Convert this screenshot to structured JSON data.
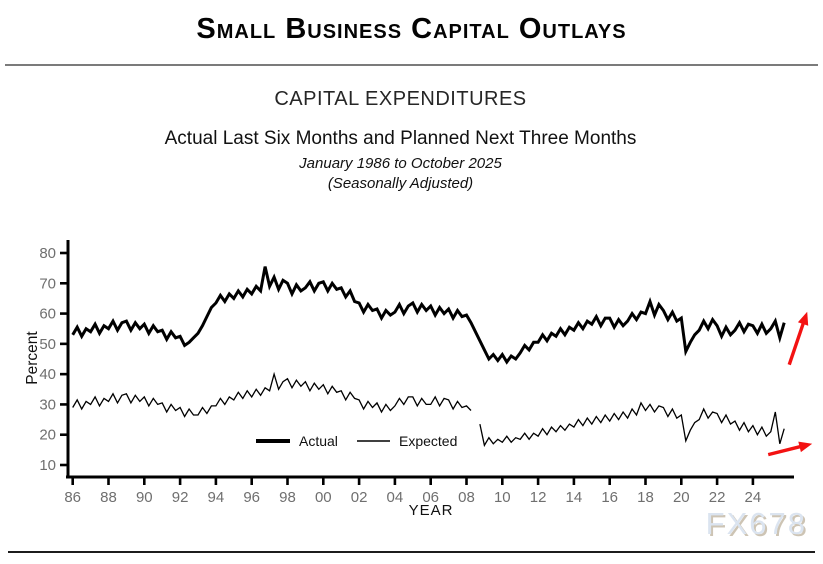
{
  "header": {
    "title": "Small Business Capital Outlays"
  },
  "chart": {
    "title": "CAPITAL EXPENDITURES",
    "subtitle": "Actual Last Six Months and Planned Next Three Months",
    "period": "January 1986 to October 2025",
    "note": "(Seasonally Adjusted)"
  },
  "watermark": {
    "text": "FX678"
  },
  "colors": {
    "axis": "#000000",
    "tick_label": "#6f6f6f",
    "axis_title": "#111111",
    "legend_text": "#111111",
    "arrow": "#f31212",
    "rule_top": "#7b7b7b",
    "rule_bottom": "#1c1c1c",
    "watermark": "#dbe4f0"
  },
  "chart_data": {
    "type": "line",
    "title": "CAPITAL EXPENDITURES",
    "subtitle": "Actual Last Six Months and Planned Next Three Months",
    "period": "January 1986 to October 2025",
    "seasonally_adjusted": true,
    "xlabel": "YEAR",
    "ylabel": "Percent",
    "grid": false,
    "legend_position": "inside-bottom-center",
    "x_start_year": 1986,
    "x_end_year": 2025.75,
    "points_per_year": 4,
    "x_tick_years": [
      1986,
      1988,
      1990,
      1992,
      1994,
      1996,
      1998,
      2000,
      2002,
      2004,
      2006,
      2008,
      2010,
      2012,
      2014,
      2016,
      2018,
      2020,
      2022,
      2024
    ],
    "x_tick_labels": [
      "86",
      "88",
      "90",
      "92",
      "94",
      "96",
      "98",
      "00",
      "02",
      "04",
      "06",
      "08",
      "10",
      "12",
      "14",
      "16",
      "18",
      "20",
      "22",
      "24"
    ],
    "y_ticks": [
      10,
      20,
      30,
      40,
      50,
      60,
      70,
      80
    ],
    "ylim": [
      6,
      83
    ],
    "series": [
      {
        "name": "Actual",
        "color": "#000000",
        "line_width": 3,
        "values": [
          53,
          55.5,
          52.5,
          55,
          54,
          56.5,
          53.5,
          56,
          55,
          57.5,
          54.5,
          57,
          57.5,
          54.5,
          57,
          55,
          56.5,
          53.5,
          56,
          54,
          54.5,
          51.5,
          54,
          52,
          52.5,
          49.5,
          50.5,
          52,
          53.5,
          56,
          59,
          62,
          63.5,
          66,
          64,
          66.5,
          65,
          67.5,
          65.5,
          68,
          66.5,
          69,
          67.5,
          75.5,
          69,
          72,
          68,
          71,
          70,
          66.5,
          69.5,
          67.5,
          68.5,
          70.5,
          67.5,
          70,
          70.5,
          67.5,
          70,
          68,
          68.5,
          65.5,
          67.5,
          64,
          63.5,
          60.5,
          63,
          61,
          61.5,
          58.5,
          61,
          59.5,
          60.5,
          63,
          60,
          62.5,
          63.5,
          60.5,
          63,
          61,
          62.5,
          59.5,
          62,
          60,
          61.5,
          58.5,
          61,
          59,
          59.5,
          57,
          54,
          51,
          48,
          45,
          46.5,
          44.5,
          46.5,
          44,
          46,
          45,
          47,
          49.5,
          48,
          50.5,
          50.5,
          53,
          51,
          53.5,
          52.5,
          55,
          53,
          55.5,
          54.5,
          57,
          55,
          57.5,
          56.5,
          59,
          56,
          58.5,
          58.5,
          55.5,
          58,
          56,
          57.5,
          60,
          58,
          60.5,
          60,
          64,
          59.5,
          63,
          61,
          58,
          60.5,
          57.5,
          58.5,
          47.5,
          50.5,
          53,
          54.5,
          57.5,
          55,
          58,
          56,
          52.5,
          55.5,
          53,
          54.5,
          57,
          54,
          56.5,
          56,
          53.5,
          56.5,
          53.5,
          55,
          57.5,
          52,
          57
        ]
      },
      {
        "name": "Expected",
        "color": "#000000",
        "line_width": 1.3,
        "values": [
          29,
          31.5,
          28.5,
          31,
          30,
          32.5,
          29.5,
          32,
          31,
          33.5,
          30.5,
          33,
          33.5,
          30.5,
          33,
          31,
          32.5,
          29.5,
          32,
          30,
          30.5,
          27.5,
          30,
          28,
          29,
          26,
          28.5,
          26.5,
          26.5,
          29,
          27,
          29.5,
          29.5,
          32,
          30,
          32.5,
          31.5,
          34,
          32,
          34.5,
          32.5,
          35,
          33,
          35.5,
          34.5,
          40,
          35,
          37.5,
          38.5,
          35.5,
          38,
          36,
          37.5,
          34.5,
          37,
          35,
          36.5,
          33.5,
          36,
          34,
          34.5,
          31.5,
          34,
          32,
          31.5,
          28.5,
          31,
          29,
          30.5,
          27.5,
          30,
          28,
          29.5,
          32,
          30,
          32.5,
          32.5,
          29.5,
          32,
          30,
          30,
          32.5,
          29.5,
          32,
          31.5,
          28.5,
          31,
          29,
          29.5,
          28,
          null,
          23.5,
          16.5,
          19,
          17,
          18.5,
          17.5,
          19.5,
          17.5,
          19,
          18.5,
          20.5,
          18.5,
          20.5,
          19.5,
          22,
          20,
          22.5,
          21,
          23,
          21.5,
          23.5,
          22.5,
          25,
          23,
          25.5,
          23.5,
          26,
          24,
          26.5,
          24.5,
          27,
          25,
          27.5,
          25.5,
          28.5,
          26.5,
          30.5,
          28,
          30,
          27.5,
          29.5,
          29,
          26,
          28.5,
          25.5,
          26.5,
          18,
          21.5,
          24,
          25,
          28.5,
          25.5,
          27.5,
          27,
          24,
          26.5,
          23.5,
          24.5,
          21.5,
          24,
          21,
          23,
          20,
          22.5,
          19.5,
          21,
          27.5,
          17,
          22
        ]
      }
    ],
    "annotations": [
      {
        "series": "Actual",
        "shape": "arrow",
        "direction": "up-right",
        "color": "#f31212"
      },
      {
        "series": "Expected",
        "shape": "arrow",
        "direction": "right",
        "color": "#f31212"
      }
    ]
  }
}
